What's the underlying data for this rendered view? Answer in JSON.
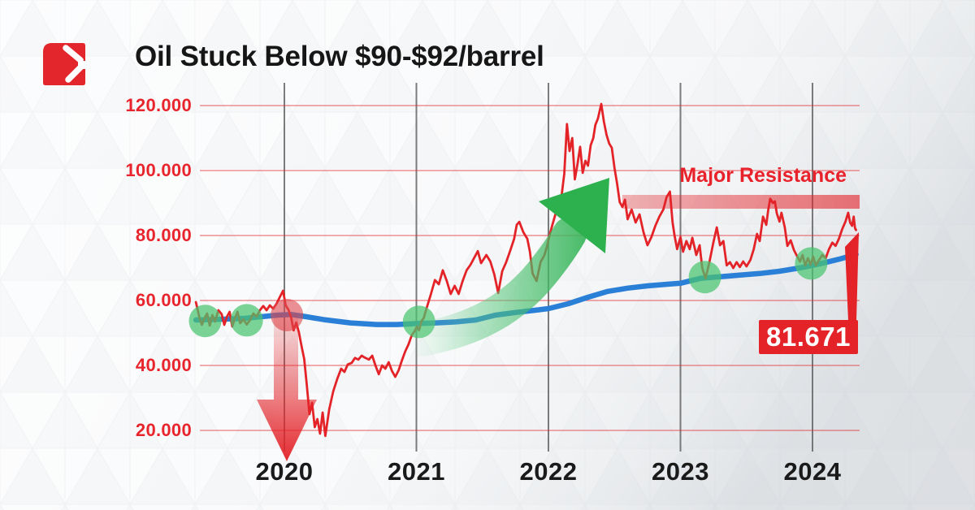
{
  "header": {
    "title": "Oil Stuck Below $90-$92/barrel",
    "logo_icon": "red-square-chevron-logo"
  },
  "chart_data": {
    "type": "line",
    "title": "Oil Stuck Below $90-$92/barrel",
    "grid": {
      "horizontal": true,
      "vertical": true
    },
    "grid_color": "#e32328",
    "x_axis": {
      "ticks": [
        "2020",
        "2021",
        "2022",
        "2023",
        "2024"
      ],
      "tick_years": [
        2020,
        2021,
        2022,
        2023,
        2024
      ],
      "range_years": [
        2019.33,
        2024.35
      ]
    },
    "y_axis": {
      "ticks": [
        {
          "label": "120.000",
          "value": 120
        },
        {
          "label": "100.000",
          "value": 100
        },
        {
          "label": "80.000",
          "value": 80
        },
        {
          "label": "60.000",
          "value": 60
        },
        {
          "label": "40.000",
          "value": 40
        },
        {
          "label": "20.000",
          "value": 20
        }
      ],
      "range": [
        15,
        125
      ]
    },
    "series": [
      {
        "name": "oil-price",
        "color": "#e32328",
        "width": 2.8,
        "points": [
          [
            2019.33,
            59.5
          ],
          [
            2019.355,
            55
          ],
          [
            2019.375,
            52.5
          ],
          [
            2019.395,
            54.5
          ],
          [
            2019.415,
            56
          ],
          [
            2019.435,
            52.3
          ],
          [
            2019.455,
            55.5
          ],
          [
            2019.475,
            53.5
          ],
          [
            2019.5,
            57
          ],
          [
            2019.525,
            55.8
          ],
          [
            2019.545,
            52.5
          ],
          [
            2019.565,
            55
          ],
          [
            2019.585,
            56.5
          ],
          [
            2019.605,
            52
          ],
          [
            2019.625,
            54.5
          ],
          [
            2019.645,
            56.5
          ],
          [
            2019.665,
            53
          ],
          [
            2019.69,
            54.2
          ],
          [
            2019.715,
            52.6
          ],
          [
            2019.74,
            54
          ],
          [
            2019.765,
            56
          ],
          [
            2019.79,
            55
          ],
          [
            2019.815,
            57
          ],
          [
            2019.84,
            58.3
          ],
          [
            2019.865,
            57
          ],
          [
            2019.89,
            58.5
          ],
          [
            2019.915,
            57.5
          ],
          [
            2019.94,
            59
          ],
          [
            2019.965,
            61
          ],
          [
            2019.99,
            63
          ],
          [
            2020.01,
            58.5
          ],
          [
            2020.03,
            57.2
          ],
          [
            2020.05,
            55
          ],
          [
            2020.07,
            50.8
          ],
          [
            2020.09,
            53.2
          ],
          [
            2020.11,
            50.2
          ],
          [
            2020.13,
            46
          ],
          [
            2020.15,
            42
          ],
          [
            2020.17,
            34
          ],
          [
            2020.19,
            25
          ],
          [
            2020.21,
            28.5
          ],
          [
            2020.23,
            21
          ],
          [
            2020.25,
            23.5
          ],
          [
            2020.27,
            19
          ],
          [
            2020.29,
            25.5
          ],
          [
            2020.31,
            18.3
          ],
          [
            2020.34,
            26.5
          ],
          [
            2020.37,
            32
          ],
          [
            2020.4,
            35.8
          ],
          [
            2020.43,
            39
          ],
          [
            2020.455,
            38
          ],
          [
            2020.48,
            40.3
          ],
          [
            2020.51,
            40.8
          ],
          [
            2020.535,
            42.3
          ],
          [
            2020.56,
            41.8
          ],
          [
            2020.585,
            43
          ],
          [
            2020.61,
            42.4
          ],
          [
            2020.64,
            41.8
          ],
          [
            2020.665,
            43
          ],
          [
            2020.69,
            40
          ],
          [
            2020.715,
            37.3
          ],
          [
            2020.74,
            40
          ],
          [
            2020.765,
            39
          ],
          [
            2020.79,
            41
          ],
          [
            2020.815,
            38.3
          ],
          [
            2020.84,
            36.5
          ],
          [
            2020.865,
            38.5
          ],
          [
            2020.89,
            41.5
          ],
          [
            2020.915,
            44.3
          ],
          [
            2020.94,
            46.5
          ],
          [
            2020.965,
            49.3
          ],
          [
            2020.985,
            50.5
          ],
          [
            2021.005,
            52
          ],
          [
            2021.02,
            50.8
          ],
          [
            2021.04,
            53.8
          ],
          [
            2021.055,
            54.5
          ],
          [
            2021.08,
            58
          ],
          [
            2021.11,
            62
          ],
          [
            2021.14,
            66.3
          ],
          [
            2021.17,
            65
          ],
          [
            2021.2,
            69.3
          ],
          [
            2021.23,
            66
          ],
          [
            2021.26,
            62
          ],
          [
            2021.29,
            64.5
          ],
          [
            2021.32,
            62
          ],
          [
            2021.35,
            66
          ],
          [
            2021.38,
            69.3
          ],
          [
            2021.41,
            71
          ],
          [
            2021.44,
            73.3
          ],
          [
            2021.465,
            75.2
          ],
          [
            2021.49,
            71.5
          ],
          [
            2021.53,
            74
          ],
          [
            2021.56,
            72
          ],
          [
            2021.59,
            68
          ],
          [
            2021.62,
            62.3
          ],
          [
            2021.65,
            69
          ],
          [
            2021.68,
            71.8
          ],
          [
            2021.71,
            75.3
          ],
          [
            2021.74,
            79
          ],
          [
            2021.76,
            83.3
          ],
          [
            2021.78,
            84.2
          ],
          [
            2021.81,
            81
          ],
          [
            2021.84,
            79
          ],
          [
            2021.86,
            75
          ],
          [
            2021.88,
            68.3
          ],
          [
            2021.91,
            66
          ],
          [
            2021.94,
            71.8
          ],
          [
            2021.97,
            74
          ],
          [
            2021.99,
            76.8
          ],
          [
            2022.005,
            79.5
          ],
          [
            2022.03,
            83.3
          ],
          [
            2022.055,
            86.8
          ],
          [
            2022.08,
            89
          ],
          [
            2022.1,
            92.3
          ],
          [
            2022.12,
            99
          ],
          [
            2022.14,
            114.3
          ],
          [
            2022.16,
            106
          ],
          [
            2022.18,
            110
          ],
          [
            2022.2,
            97.3
          ],
          [
            2022.22,
            102
          ],
          [
            2022.24,
            107.3
          ],
          [
            2022.26,
            99.3
          ],
          [
            2022.28,
            103
          ],
          [
            2022.3,
            101.5
          ],
          [
            2022.32,
            107.8
          ],
          [
            2022.34,
            110
          ],
          [
            2022.355,
            114
          ],
          [
            2022.375,
            116
          ],
          [
            2022.4,
            120.5
          ],
          [
            2022.42,
            115
          ],
          [
            2022.44,
            111
          ],
          [
            2022.46,
            108.3
          ],
          [
            2022.48,
            107
          ],
          [
            2022.5,
            100.8
          ],
          [
            2022.52,
            96
          ],
          [
            2022.54,
            90.3
          ],
          [
            2022.56,
            88.8
          ],
          [
            2022.58,
            91
          ],
          [
            2022.6,
            85
          ],
          [
            2022.63,
            88
          ],
          [
            2022.66,
            84
          ],
          [
            2022.69,
            86.5
          ],
          [
            2022.72,
            81
          ],
          [
            2022.75,
            77
          ],
          [
            2022.78,
            79.5
          ],
          [
            2022.81,
            83
          ],
          [
            2022.84,
            85.8
          ],
          [
            2022.87,
            88
          ],
          [
            2022.895,
            91.8
          ],
          [
            2022.92,
            93.5
          ],
          [
            2022.94,
            84
          ],
          [
            2022.955,
            80
          ],
          [
            2022.975,
            75.8
          ],
          [
            2023.0,
            79.5
          ],
          [
            2023.02,
            75
          ],
          [
            2023.045,
            78.3
          ],
          [
            2023.07,
            75.8
          ],
          [
            2023.09,
            79.3
          ],
          [
            2023.12,
            74
          ],
          [
            2023.145,
            77
          ],
          [
            2023.165,
            70
          ],
          [
            2023.19,
            66.8
          ],
          [
            2023.22,
            72
          ],
          [
            2023.25,
            78
          ],
          [
            2023.275,
            82.5
          ],
          [
            2023.3,
            77
          ],
          [
            2023.325,
            78.3
          ],
          [
            2023.35,
            70.8
          ],
          [
            2023.375,
            71.8
          ],
          [
            2023.4,
            70
          ],
          [
            2023.425,
            71.8
          ],
          [
            2023.45,
            70.3
          ],
          [
            2023.475,
            72
          ],
          [
            2023.5,
            70.5
          ],
          [
            2023.53,
            72.5
          ],
          [
            2023.555,
            75.8
          ],
          [
            2023.58,
            80.5
          ],
          [
            2023.6,
            78.3
          ],
          [
            2023.625,
            85.8
          ],
          [
            2023.65,
            83.3
          ],
          [
            2023.665,
            88
          ],
          [
            2023.68,
            91.3
          ],
          [
            2023.7,
            90
          ],
          [
            2023.715,
            90.5
          ],
          [
            2023.73,
            86.8
          ],
          [
            2023.75,
            84.3
          ],
          [
            2023.765,
            87
          ],
          [
            2023.79,
            82.5
          ],
          [
            2023.81,
            76.8
          ],
          [
            2023.835,
            78.5
          ],
          [
            2023.86,
            75.5
          ],
          [
            2023.885,
            73.5
          ],
          [
            2023.905,
            72
          ],
          [
            2023.925,
            74
          ],
          [
            2023.945,
            70.8
          ],
          [
            2023.965,
            73
          ],
          [
            2023.985,
            71
          ],
          [
            2024.005,
            73.5
          ],
          [
            2024.025,
            70.8
          ],
          [
            2024.05,
            72.5
          ],
          [
            2024.075,
            74
          ],
          [
            2024.1,
            73
          ],
          [
            2024.125,
            75.8
          ],
          [
            2024.15,
            77.8
          ],
          [
            2024.175,
            76.8
          ],
          [
            2024.2,
            79
          ],
          [
            2024.225,
            82
          ],
          [
            2024.25,
            84.3
          ],
          [
            2024.27,
            87
          ],
          [
            2024.285,
            84
          ],
          [
            2024.3,
            83
          ],
          [
            2024.312,
            85.8
          ],
          [
            2024.322,
            82.3
          ],
          [
            2024.33,
            81.671
          ]
        ]
      },
      {
        "name": "long-term-moving-average",
        "color": "#2a7fd6",
        "width": 6.5,
        "points": [
          [
            2019.33,
            54
          ],
          [
            2019.5,
            54.2
          ],
          [
            2019.7,
            54.5
          ],
          [
            2019.85,
            55.1
          ],
          [
            2019.95,
            55.5
          ],
          [
            2020.05,
            55.7
          ],
          [
            2020.15,
            55.1
          ],
          [
            2020.3,
            54.1
          ],
          [
            2020.5,
            53.1
          ],
          [
            2020.7,
            52.6
          ],
          [
            2020.85,
            52.6
          ],
          [
            2021.0,
            52.9
          ],
          [
            2021.15,
            53.1
          ],
          [
            2021.3,
            53.4
          ],
          [
            2021.45,
            54
          ],
          [
            2021.6,
            55.5
          ],
          [
            2021.75,
            56.3
          ],
          [
            2021.9,
            57
          ],
          [
            2022.0,
            57.5
          ],
          [
            2022.15,
            59
          ],
          [
            2022.3,
            61
          ],
          [
            2022.45,
            62.8
          ],
          [
            2022.6,
            63.8
          ],
          [
            2022.75,
            64.5
          ],
          [
            2022.9,
            65
          ],
          [
            2023.0,
            65.3
          ],
          [
            2023.15,
            66.8
          ],
          [
            2023.3,
            67.3
          ],
          [
            2023.45,
            67.8
          ],
          [
            2023.6,
            68.3
          ],
          [
            2023.75,
            69
          ],
          [
            2023.9,
            70
          ],
          [
            2024.0,
            70.8
          ],
          [
            2024.1,
            71.7
          ],
          [
            2024.2,
            72.7
          ],
          [
            2024.33,
            74.2
          ]
        ]
      }
    ],
    "annotations": {
      "resistance": {
        "label": "Major Resistance",
        "zone_price_range": [
          88.25,
          92.5
        ],
        "x_start_year": 2022.56,
        "color": "#e32328"
      },
      "last_price": {
        "label": "81.671",
        "value": 81.671,
        "year": 2024.33
      },
      "support_touch_markers": {
        "color": "#49c56f",
        "radius": 20,
        "points": [
          [
            2019.4,
            53.7
          ],
          [
            2019.715,
            53.9
          ],
          [
            2021.02,
            53.4
          ],
          [
            2023.185,
            67.2
          ],
          [
            2023.99,
            71.4
          ]
        ]
      },
      "breakdown_marker": {
        "color": "#e04a4f",
        "radius": 20,
        "point": [
          2020.02,
          55.5
        ]
      },
      "crash_arrow": {
        "direction": "down",
        "year": 2020.02
      },
      "rally_arrow": {
        "direction": "up",
        "from_year": 2021.05,
        "to_year": 2022.45
      }
    }
  }
}
